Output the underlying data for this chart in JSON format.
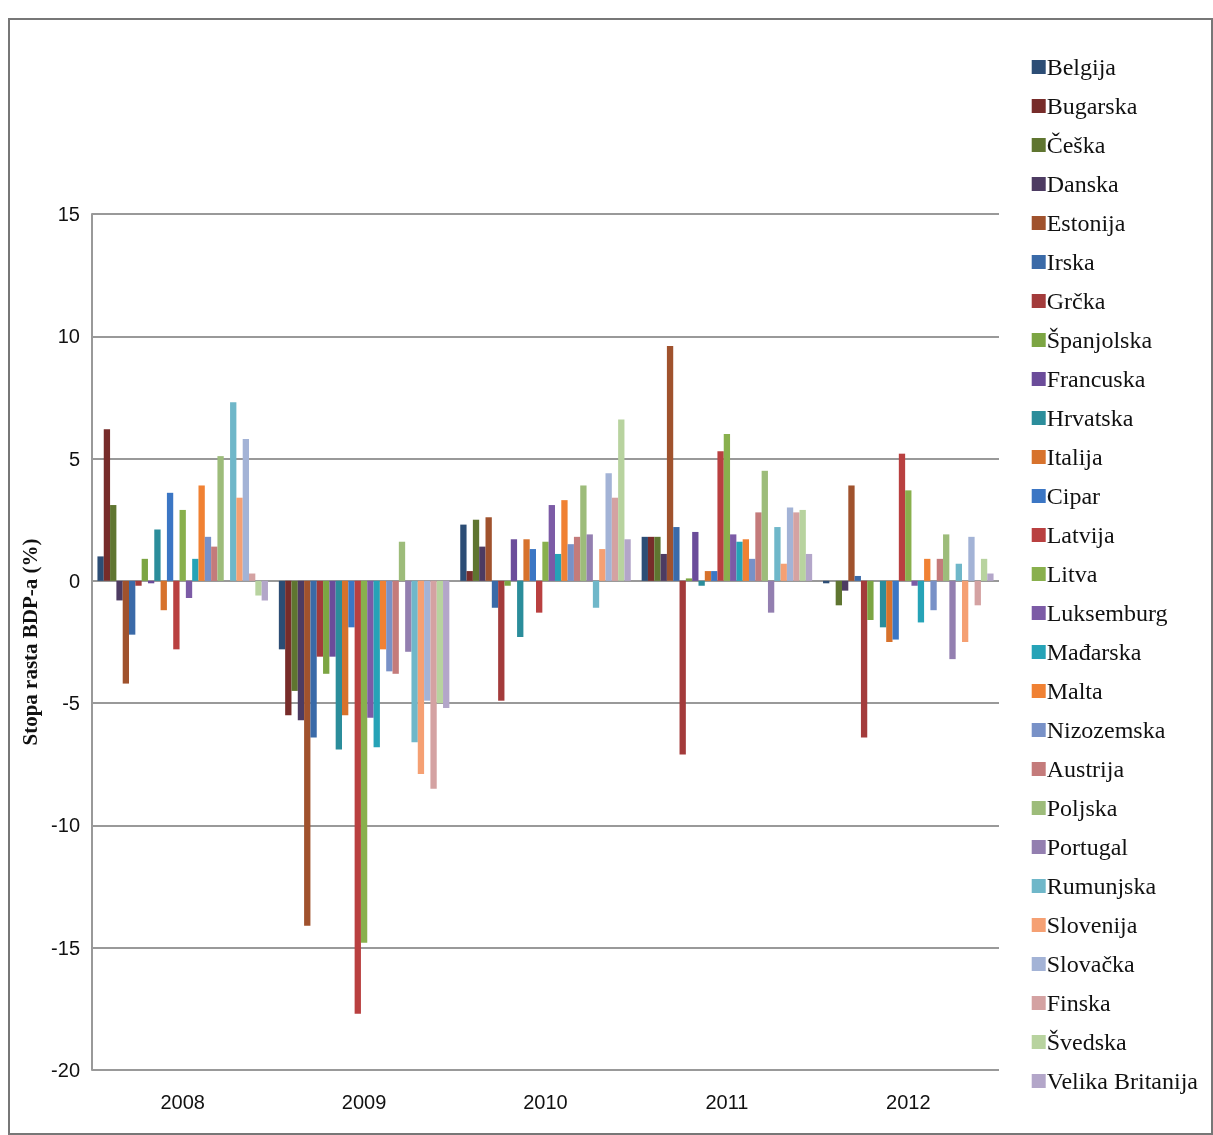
{
  "chart_data": {
    "type": "bar",
    "ylabel": "Stopa rasta BDP-a (%)",
    "categories": [
      "2008",
      "2009",
      "2010",
      "2011",
      "2012"
    ],
    "ylim": [
      -20,
      15
    ],
    "yticks": [
      -20,
      -15,
      -10,
      -5,
      0,
      5,
      10,
      15
    ],
    "grid": "y",
    "legend": "right",
    "series": [
      {
        "name": "Belgija",
        "color": "#2c4d75",
        "values": [
          1.0,
          -2.8,
          2.3,
          1.8,
          -0.1
        ]
      },
      {
        "name": "Bugarska",
        "color": "#772c2a",
        "values": [
          6.2,
          -5.5,
          0.4,
          1.8,
          null
        ]
      },
      {
        "name": "Češka",
        "color": "#5f7530",
        "values": [
          3.1,
          -4.5,
          2.5,
          1.8,
          -1.0
        ]
      },
      {
        "name": "Danska",
        "color": "#4d3b62",
        "values": [
          -0.8,
          -5.7,
          1.4,
          1.1,
          -0.4
        ]
      },
      {
        "name": "Estonija",
        "color": "#a0522d",
        "values": [
          -4.2,
          -14.1,
          2.6,
          9.6,
          3.9
        ]
      },
      {
        "name": "Irska",
        "color": "#3a6aa8",
        "values": [
          -2.2,
          -6.4,
          -1.1,
          2.2,
          0.2
        ]
      },
      {
        "name": "Grčka",
        "color": "#a33b3b",
        "values": [
          -0.2,
          -3.1,
          -4.9,
          -7.1,
          -6.4
        ]
      },
      {
        "name": "Španjolska",
        "color": "#7ca543",
        "values": [
          0.9,
          -3.8,
          -0.2,
          0.1,
          -1.6
        ]
      },
      {
        "name": "Francuska",
        "color": "#6b4c9a",
        "values": [
          -0.1,
          -3.1,
          1.7,
          2.0,
          null
        ]
      },
      {
        "name": "Hrvatska",
        "color": "#2b8d9b",
        "values": [
          2.1,
          -6.9,
          -2.3,
          -0.2,
          -1.9
        ]
      },
      {
        "name": "Italija",
        "color": "#d7722c",
        "values": [
          -1.2,
          -5.5,
          1.7,
          0.4,
          -2.5
        ]
      },
      {
        "name": "Cipar",
        "color": "#3b76c4",
        "values": [
          3.6,
          -1.9,
          1.3,
          0.4,
          -2.4
        ]
      },
      {
        "name": "Latvija",
        "color": "#b94040",
        "values": [
          -2.8,
          -17.7,
          -1.3,
          5.3,
          5.2
        ]
      },
      {
        "name": "Litva",
        "color": "#89b04d",
        "values": [
          2.9,
          -14.8,
          1.6,
          6.0,
          3.7
        ]
      },
      {
        "name": "Luksemburg",
        "color": "#7c5ba6",
        "values": [
          -0.7,
          -5.6,
          3.1,
          1.9,
          -0.2
        ]
      },
      {
        "name": "Mađarska",
        "color": "#26a3b7",
        "values": [
          0.9,
          -6.8,
          1.1,
          1.6,
          -1.7
        ]
      },
      {
        "name": "Malta",
        "color": "#f08133",
        "values": [
          3.9,
          -2.8,
          3.3,
          1.7,
          0.9
        ]
      },
      {
        "name": "Nizozemska",
        "color": "#7891c7",
        "values": [
          1.8,
          -3.7,
          1.5,
          0.9,
          -1.2
        ]
      },
      {
        "name": "Austrija",
        "color": "#c47b7b",
        "values": [
          1.4,
          -3.8,
          1.8,
          2.8,
          0.9
        ]
      },
      {
        "name": "Poljska",
        "color": "#9dbc7a",
        "values": [
          5.1,
          1.6,
          3.9,
          4.5,
          1.9
        ]
      },
      {
        "name": "Portugal",
        "color": "#937fb0",
        "values": [
          null,
          -2.9,
          1.9,
          -1.3,
          -3.2
        ]
      },
      {
        "name": "Rumunjska",
        "color": "#6fb7c9",
        "values": [
          7.3,
          -6.6,
          -1.1,
          2.2,
          0.7
        ]
      },
      {
        "name": "Slovenija",
        "color": "#f5a073",
        "values": [
          3.4,
          -7.9,
          1.3,
          0.7,
          -2.5
        ]
      },
      {
        "name": "Slovačka",
        "color": "#a3b3d6",
        "values": [
          5.8,
          -4.9,
          4.4,
          3.0,
          1.8
        ]
      },
      {
        "name": "Finska",
        "color": "#d4a2a2",
        "values": [
          0.3,
          -8.5,
          3.4,
          2.8,
          -1.0
        ]
      },
      {
        "name": "Švedska",
        "color": "#b8d39f",
        "values": [
          -0.6,
          -5.0,
          6.6,
          2.9,
          0.9
        ]
      },
      {
        "name": "Velika Britanija",
        "color": "#b3a6c9",
        "values": [
          -0.8,
          -5.2,
          1.7,
          1.1,
          0.3
        ]
      }
    ]
  }
}
